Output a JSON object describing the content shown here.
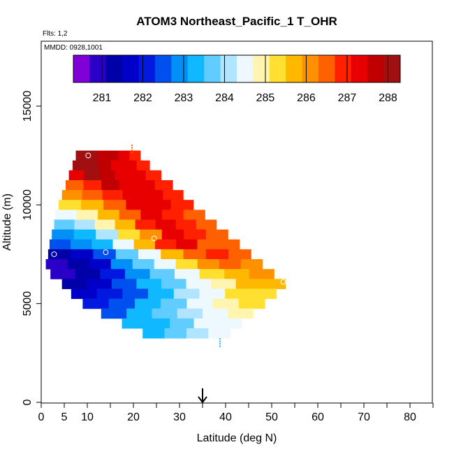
{
  "chart_data": {
    "type": "heatmap",
    "title": "ATOM3 Northeast_Pacific_1 T_OHR",
    "flights_note": "Flts: 1,2",
    "date_note": "MMDD: 0928,1001",
    "xlabel": "Latitude (deg N)",
    "ylabel": "Altitude (m)",
    "xlim": [
      0,
      85
    ],
    "ylim": [
      0,
      17500
    ],
    "x_ticks": [
      0,
      5,
      10,
      20,
      30,
      40,
      50,
      60,
      70,
      80
    ],
    "y_ticks": [
      0,
      5000,
      10000,
      15000
    ],
    "marker_latitude": 35,
    "colorbar": {
      "ticks": [
        "281",
        "282",
        "283",
        "284",
        "285",
        "286",
        "287",
        "288"
      ],
      "min": 280.3,
      "max": 288.3,
      "colors": [
        "#8000d8",
        "#2a00c8",
        "#0000a8",
        "#0000c8",
        "#0018e0",
        "#0050f0",
        "#0090f8",
        "#10b8ff",
        "#60ccff",
        "#b0e4ff",
        "#eef8ff",
        "#fff4b0",
        "#ffe030",
        "#ffb800",
        "#ff9000",
        "#ff6000",
        "#ff2000",
        "#e80000",
        "#c00000",
        "#a01010"
      ]
    },
    "rows": [
      {
        "alt": 12500,
        "x0": 7.5,
        "x1": 21.5,
        "temps": [
          288.2,
          288.1,
          287.9,
          287.6,
          287.3,
          287.0
        ]
      },
      {
        "alt": 12000,
        "x0": 6.8,
        "x1": 23.5,
        "temps": [
          288.3,
          288.0,
          287.7,
          287.4,
          287.1,
          286.8
        ]
      },
      {
        "alt": 11500,
        "x0": 6.0,
        "x1": 26.0,
        "temps": [
          287.5,
          288.0,
          287.8,
          287.5,
          287.1,
          286.8
        ]
      },
      {
        "alt": 11000,
        "x0": 5.3,
        "x1": 28.5,
        "temps": [
          286.5,
          287.0,
          287.7,
          287.5,
          287.1,
          286.8
        ]
      },
      {
        "alt": 10500,
        "x0": 4.5,
        "x1": 30.8,
        "temps": [
          286.0,
          286.3,
          287.0,
          287.5,
          287.2,
          286.8
        ]
      },
      {
        "alt": 10000,
        "x0": 3.8,
        "x1": 33.0,
        "temps": [
          285.3,
          285.8,
          286.4,
          287.2,
          287.3,
          286.8
        ]
      },
      {
        "alt": 9500,
        "x0": 3.0,
        "x1": 35.5,
        "temps": [
          284.6,
          285.0,
          285.8,
          286.6,
          287.3,
          287.0,
          286.6
        ]
      },
      {
        "alt": 9000,
        "x0": 2.8,
        "x1": 38.0,
        "temps": [
          283.6,
          284.0,
          284.8,
          285.8,
          286.8,
          287.3,
          286.8,
          286.5
        ]
      },
      {
        "alt": 8500,
        "x0": 2.3,
        "x1": 40.5,
        "temps": [
          283.0,
          283.3,
          284.0,
          285.2,
          286.2,
          287.3,
          287.0,
          286.5
        ]
      },
      {
        "alt": 8000,
        "x0": 1.8,
        "x1": 43.0,
        "temps": [
          282.3,
          282.8,
          283.5,
          284.5,
          285.6,
          286.8,
          287.2,
          286.6,
          286.3
        ]
      },
      {
        "alt": 7500,
        "x0": 1.5,
        "x1": 45.5,
        "temps": [
          281.5,
          281.9,
          282.6,
          283.6,
          284.6,
          285.6,
          286.6,
          286.8,
          286.3
        ]
      },
      {
        "alt": 7000,
        "x0": 1.0,
        "x1": 48.0,
        "temps": [
          280.8,
          281.3,
          281.9,
          282.8,
          283.6,
          284.4,
          285.3,
          286.2,
          286.4,
          286.1
        ]
      },
      {
        "alt": 6500,
        "x0": 2.0,
        "x1": 50.5,
        "temps": [
          281.0,
          281.5,
          282.2,
          283.0,
          283.8,
          284.5,
          285.2,
          285.8,
          286.0
        ]
      },
      {
        "alt": 6000,
        "x0": 4.5,
        "x1": 53.0,
        "temps": [
          281.3,
          281.8,
          282.4,
          283.1,
          283.8,
          284.4,
          285.0,
          285.6,
          285.9
        ]
      },
      {
        "alt": 5500,
        "x0": 6.5,
        "x1": 51.0,
        "temps": [
          281.6,
          282.0,
          282.6,
          283.3,
          284.0,
          284.6,
          285.1,
          285.5
        ]
      },
      {
        "alt": 5000,
        "x0": 9.0,
        "x1": 48.5,
        "temps": [
          282.0,
          282.5,
          283.1,
          283.8,
          284.4,
          284.9,
          285.3
        ]
      },
      {
        "alt": 4500,
        "x0": 13.0,
        "x1": 46.0,
        "temps": [
          282.6,
          283.1,
          283.6,
          284.1,
          284.6,
          285.0
        ]
      },
      {
        "alt": 4000,
        "x0": 17.5,
        "x1": 43.5,
        "temps": [
          283.1,
          283.5,
          283.9,
          284.3,
          284.7
        ]
      },
      {
        "alt": 3500,
        "x0": 22.0,
        "x1": 41.0,
        "temps": [
          283.4,
          283.7,
          284.0,
          284.3
        ]
      }
    ],
    "sample_markers": [
      {
        "lat": 10.2,
        "alt": 12500,
        "temp": 287.5
      },
      {
        "lat": 24.5,
        "alt": 8300,
        "temp": 286.6
      },
      {
        "lat": 14.0,
        "alt": 7600,
        "temp": 283.3
      },
      {
        "lat": 2.8,
        "alt": 7500,
        "temp": 281.0
      },
      {
        "lat": 52.5,
        "alt": 6100,
        "temp": 286.0
      }
    ],
    "flight_ticks": [
      {
        "lat": 19.7,
        "alt": 12800,
        "temp": 286.3
      },
      {
        "lat": 38.8,
        "alt": 3000,
        "temp": 283.2
      }
    ]
  }
}
